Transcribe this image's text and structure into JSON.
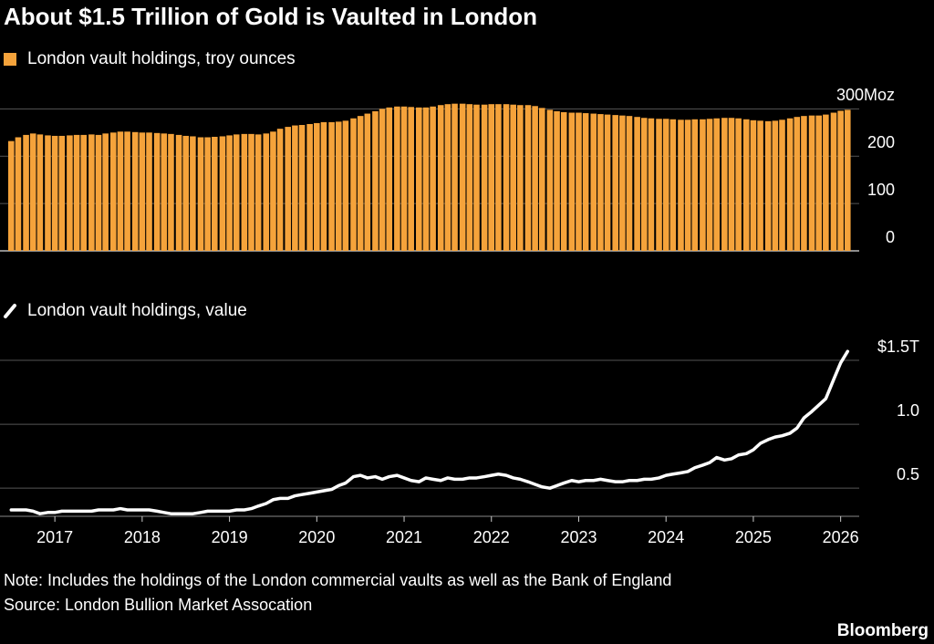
{
  "title": "About $1.5 Trillion of Gold is Vaulted in London",
  "chart_data": [
    {
      "type": "bar",
      "series": [
        {
          "name": "London vault holdings, troy ounces",
          "color": "#f5a33b",
          "values": [
            232,
            240,
            245,
            248,
            246,
            244,
            243,
            243,
            244,
            245,
            245,
            246,
            245,
            248,
            250,
            252,
            252,
            251,
            250,
            250,
            249,
            248,
            247,
            245,
            243,
            242,
            240,
            240,
            241,
            242,
            244,
            246,
            247,
            247,
            246,
            248,
            252,
            258,
            262,
            265,
            266,
            268,
            270,
            272,
            272,
            273,
            275,
            280,
            285,
            290,
            295,
            300,
            303,
            305,
            305,
            304,
            303,
            303,
            305,
            308,
            310,
            311,
            311,
            310,
            309,
            309,
            310,
            310,
            310,
            309,
            308,
            308,
            306,
            302,
            298,
            295,
            293,
            292,
            292,
            291,
            290,
            289,
            288,
            287,
            286,
            285,
            283,
            281,
            280,
            279,
            279,
            278,
            277,
            277,
            278,
            278,
            279,
            280,
            281,
            281,
            280,
            278,
            276,
            275,
            274,
            275,
            277,
            280,
            283,
            285,
            286,
            286,
            288,
            292,
            296,
            298
          ]
        }
      ],
      "x": [
        2016.5,
        2016.58,
        2016.67,
        2016.75,
        2016.83,
        2016.92,
        2017,
        2017.08,
        2017.17,
        2017.25,
        2017.33,
        2017.42,
        2017.5,
        2017.58,
        2017.67,
        2017.75,
        2017.83,
        2017.92,
        2018,
        2018.08,
        2018.17,
        2018.25,
        2018.33,
        2018.42,
        2018.5,
        2018.58,
        2018.67,
        2018.75,
        2018.83,
        2018.92,
        2019,
        2019.08,
        2019.17,
        2019.25,
        2019.33,
        2019.42,
        2019.5,
        2019.58,
        2019.67,
        2019.75,
        2019.83,
        2019.92,
        2020,
        2020.08,
        2020.17,
        2020.25,
        2020.33,
        2020.42,
        2020.5,
        2020.58,
        2020.67,
        2020.75,
        2020.83,
        2020.92,
        2021,
        2021.08,
        2021.17,
        2021.25,
        2021.33,
        2021.42,
        2021.5,
        2021.58,
        2021.67,
        2021.75,
        2021.83,
        2021.92,
        2022,
        2022.08,
        2022.17,
        2022.25,
        2022.33,
        2022.42,
        2022.5,
        2022.58,
        2022.67,
        2022.75,
        2022.83,
        2022.92,
        2023,
        2023.08,
        2023.17,
        2023.25,
        2023.33,
        2023.42,
        2023.5,
        2023.58,
        2023.67,
        2023.75,
        2023.83,
        2023.92,
        2024,
        2024.08,
        2024.17,
        2024.25,
        2024.33,
        2024.42,
        2024.5,
        2024.58,
        2024.67,
        2024.75,
        2024.83,
        2024.92,
        2025,
        2025.08,
        2025.17,
        2025.25,
        2025.33,
        2025.42,
        2025.5,
        2025.58,
        2025.67,
        2025.75,
        2025.83,
        2025.92,
        2026,
        2026.08
      ],
      "xlim": [
        2016.45,
        2026.15
      ],
      "ylim": [
        0,
        320
      ],
      "yticks": [
        {
          "value": 300,
          "label": "300Moz"
        },
        200,
        100,
        0
      ],
      "grid": true
    },
    {
      "type": "line",
      "series": [
        {
          "name": "London vault holdings, value",
          "color": "#ffffff",
          "values": [
            0.33,
            0.33,
            0.33,
            0.32,
            0.3,
            0.31,
            0.31,
            0.32,
            0.32,
            0.32,
            0.32,
            0.32,
            0.33,
            0.33,
            0.33,
            0.34,
            0.33,
            0.33,
            0.33,
            0.33,
            0.32,
            0.31,
            0.3,
            0.3,
            0.3,
            0.3,
            0.31,
            0.32,
            0.32,
            0.32,
            0.32,
            0.33,
            0.33,
            0.34,
            0.36,
            0.38,
            0.41,
            0.42,
            0.42,
            0.44,
            0.45,
            0.46,
            0.47,
            0.48,
            0.49,
            0.52,
            0.54,
            0.59,
            0.6,
            0.58,
            0.59,
            0.57,
            0.59,
            0.6,
            0.58,
            0.56,
            0.55,
            0.58,
            0.57,
            0.56,
            0.58,
            0.57,
            0.57,
            0.58,
            0.58,
            0.59,
            0.6,
            0.61,
            0.6,
            0.58,
            0.57,
            0.55,
            0.53,
            0.51,
            0.5,
            0.52,
            0.54,
            0.56,
            0.55,
            0.56,
            0.56,
            0.57,
            0.56,
            0.55,
            0.55,
            0.56,
            0.56,
            0.57,
            0.57,
            0.58,
            0.6,
            0.61,
            0.62,
            0.63,
            0.66,
            0.68,
            0.7,
            0.74,
            0.72,
            0.73,
            0.76,
            0.77,
            0.8,
            0.85,
            0.88,
            0.9,
            0.91,
            0.93,
            0.97,
            1.05,
            1.1,
            1.15,
            1.2,
            1.35,
            1.48,
            1.57
          ]
        }
      ],
      "x": [
        2016.5,
        2016.58,
        2016.67,
        2016.75,
        2016.83,
        2016.92,
        2017,
        2017.08,
        2017.17,
        2017.25,
        2017.33,
        2017.42,
        2017.5,
        2017.58,
        2017.67,
        2017.75,
        2017.83,
        2017.92,
        2018,
        2018.08,
        2018.17,
        2018.25,
        2018.33,
        2018.42,
        2018.5,
        2018.58,
        2018.67,
        2018.75,
        2018.83,
        2018.92,
        2019,
        2019.08,
        2019.17,
        2019.25,
        2019.33,
        2019.42,
        2019.5,
        2019.58,
        2019.67,
        2019.75,
        2019.83,
        2019.92,
        2020,
        2020.08,
        2020.17,
        2020.25,
        2020.33,
        2020.42,
        2020.5,
        2020.58,
        2020.67,
        2020.75,
        2020.83,
        2020.92,
        2021,
        2021.08,
        2021.17,
        2021.25,
        2021.33,
        2021.42,
        2021.5,
        2021.58,
        2021.67,
        2021.75,
        2021.83,
        2021.92,
        2022,
        2022.08,
        2022.17,
        2022.25,
        2022.33,
        2022.42,
        2022.5,
        2022.58,
        2022.67,
        2022.75,
        2022.83,
        2022.92,
        2023,
        2023.08,
        2023.17,
        2023.25,
        2023.33,
        2023.42,
        2023.5,
        2023.58,
        2023.67,
        2023.75,
        2023.83,
        2023.92,
        2024,
        2024.08,
        2024.17,
        2024.25,
        2024.33,
        2024.42,
        2024.5,
        2024.58,
        2024.67,
        2024.75,
        2024.83,
        2024.92,
        2025,
        2025.08,
        2025.17,
        2025.25,
        2025.33,
        2025.42,
        2025.5,
        2025.58,
        2025.67,
        2025.75,
        2025.83,
        2025.92,
        2026,
        2026.08
      ],
      "xlim": [
        2016.45,
        2026.15
      ],
      "xticks": [
        2017,
        2018,
        2019,
        2020,
        2021,
        2022,
        2023,
        2024,
        2025,
        2026
      ],
      "ylim": [
        0.28,
        1.6
      ],
      "yticks": [
        0.5,
        {
          "value": 1.0,
          "label": "1.0"
        },
        {
          "value": 1.5,
          "label": "$1.5T"
        }
      ],
      "grid": true
    }
  ],
  "note": "Note: Includes the holdings of the London commercial vaults as well as the Bank of England",
  "source": "Source: London Bullion Market Assocation",
  "branding": "Bloomberg"
}
